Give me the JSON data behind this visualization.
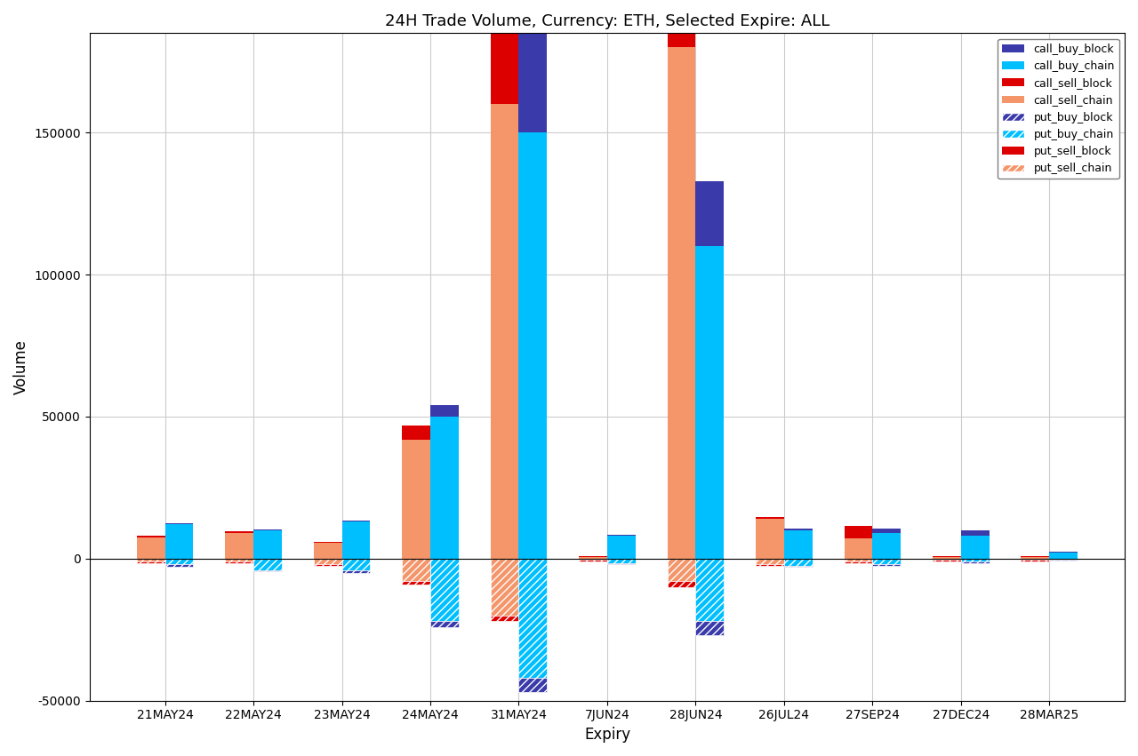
{
  "title": "24H Trade Volume, Currency: ETH, Selected Expire: ALL",
  "xlabel": "Expiry",
  "ylabel": "Volume",
  "categories": [
    "21MAY24",
    "22MAY24",
    "23MAY24",
    "24MAY24",
    "31MAY24",
    "7JUN24",
    "28JUN24",
    "26JUL24",
    "27SEP24",
    "27DEC24",
    "28MAR25"
  ],
  "ylim": [
    -50000,
    185000
  ],
  "yticks": [
    -50000,
    0,
    50000,
    100000,
    150000
  ],
  "call_buy_block": [
    500,
    200,
    500,
    4000,
    42000,
    500,
    23000,
    500,
    1500,
    2000,
    500
  ],
  "call_buy_chain": [
    12000,
    10000,
    13000,
    50000,
    150000,
    8000,
    110000,
    10000,
    9000,
    8000,
    2000
  ],
  "call_sell_block": [
    500,
    500,
    500,
    5000,
    35000,
    500,
    38000,
    500,
    4500,
    500,
    500
  ],
  "call_sell_chain": [
    7500,
    9000,
    5500,
    42000,
    160000,
    500,
    180000,
    14000,
    7000,
    500,
    500
  ],
  "put_buy_block": [
    -1000,
    -500,
    -1000,
    -2000,
    -5000,
    -500,
    -5000,
    -500,
    -500,
    -500,
    -200
  ],
  "put_buy_chain": [
    -2000,
    -4000,
    -4000,
    -22000,
    -42000,
    -1500,
    -22000,
    -2500,
    -2000,
    -1000,
    -500
  ],
  "put_sell_block": [
    -500,
    -500,
    -500,
    -1000,
    -2000,
    -500,
    -2000,
    -500,
    -500,
    -500,
    -500
  ],
  "put_sell_chain": [
    -1000,
    -1000,
    -2000,
    -8000,
    -20000,
    -500,
    -8000,
    -2000,
    -1000,
    -500,
    -500
  ],
  "colors": {
    "call_buy_block": "#3a3aaa",
    "call_buy_chain": "#00bfff",
    "call_sell_block": "#dd0000",
    "call_sell_chain": "#f4956a",
    "put_buy_block": "#3a3aaa",
    "put_buy_chain": "#00bfff",
    "put_sell_block": "#dd0000",
    "put_sell_chain": "#f4956a"
  },
  "bar_width": 0.32,
  "background_color": "#ffffff",
  "grid_color": "#cccccc"
}
